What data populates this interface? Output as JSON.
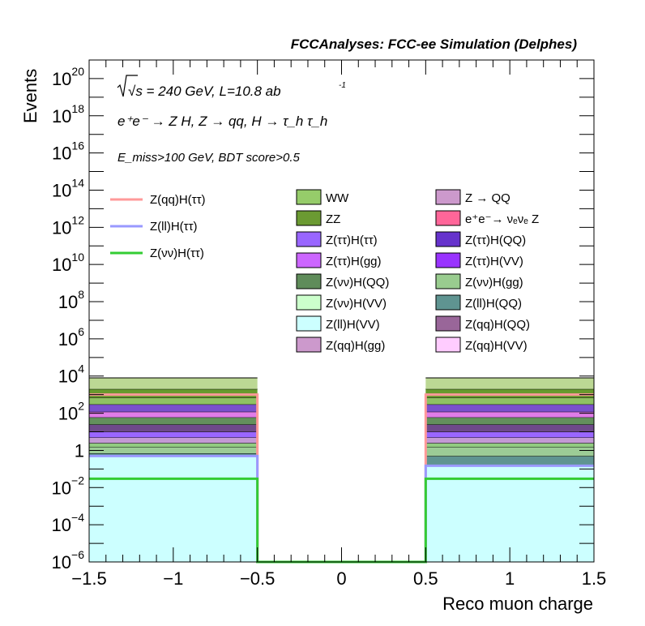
{
  "chart_data": {
    "type": "stacked histogram (log scale)",
    "title": "FCCAnalyses: FCC-ee Simulation (Delphes)",
    "xlabel": "Reco muon charge",
    "ylabel": "Events",
    "xlim": [
      -1.5,
      1.5
    ],
    "ylim": [
      1e-06,
      1e+21
    ],
    "y_scale": "log",
    "x_ticks": [
      "−1.5",
      "−1",
      "−0.5",
      "0",
      "0.5",
      "1",
      "1.5"
    ],
    "y_ticks": [
      {
        "base": "10",
        "exp": "−6",
        "value": 1e-06
      },
      {
        "base": "10",
        "exp": "−4",
        "value": 0.0001
      },
      {
        "base": "10",
        "exp": "−2",
        "value": 0.01
      },
      {
        "base": "1",
        "exp": "",
        "value": 1
      },
      {
        "base": "10",
        "exp": "2",
        "value": 100.0
      },
      {
        "base": "10",
        "exp": "4",
        "value": 10000.0
      },
      {
        "base": "10",
        "exp": "6",
        "value": 1000000.0
      },
      {
        "base": "10",
        "exp": "8",
        "value": 100000000.0
      },
      {
        "base": "10",
        "exp": "10",
        "value": 10000000000.0
      },
      {
        "base": "10",
        "exp": "12",
        "value": 1000000000000.0
      },
      {
        "base": "10",
        "exp": "14",
        "value": 100000000000000.0
      },
      {
        "base": "10",
        "exp": "16",
        "value": 1e+16
      },
      {
        "base": "10",
        "exp": "18",
        "value": 1e+18
      },
      {
        "base": "10",
        "exp": "20",
        "value": 1e+20
      }
    ],
    "bins": [
      [
        -1.5,
        -0.5
      ],
      [
        -0.5,
        0.5
      ],
      [
        0.5,
        1.5
      ]
    ],
    "annotations": {
      "energy": "√s = 240 GeV, L=10.8 ab",
      "energy_sup": "-1",
      "process": "e⁺e⁻ → Z H, Z → qq, H → τ_h τ_h",
      "cut": "E_miss>100 GeV, BDT score>0.5"
    },
    "stacked_boundaries_left_bin": [
      0.5,
      0.7,
      1.5,
      2.5,
      5,
      10,
      25,
      60,
      120,
      300,
      700,
      2000,
      8000
    ],
    "stacked_boundaries_right_bin": [
      0.15,
      0.5,
      1.5,
      2.5,
      5,
      10,
      25,
      60,
      120,
      300,
      700,
      2000,
      8000
    ],
    "stack_segment_colors": [
      "#ccffff",
      "#5f9491",
      "#9ccc96",
      "#91cc80",
      "#c39ad4",
      "#9a66ff",
      "#6e4a8a",
      "#63905c",
      "#e07ce8",
      "#7a50cc",
      "#8fc163",
      "#689a2e",
      "#bcd894"
    ],
    "stack_legend": [
      {
        "name": "WW",
        "color": "#96cc6a"
      },
      {
        "name": "Z → QQ",
        "color": "#cc99cc"
      },
      {
        "name": "ZZ",
        "color": "#6b9a32"
      },
      {
        "name": "e⁺e⁻→ νₑνₑ Z",
        "color": "#ff6699"
      },
      {
        "name": "Z(ττ)H(ττ)",
        "color": "#9966ff"
      },
      {
        "name": "Z(ττ)H(QQ)",
        "color": "#6633cc"
      },
      {
        "name": "Z(ττ)H(gg)",
        "color": "#cc66ff"
      },
      {
        "name": "Z(ττ)H(VV)",
        "color": "#9933ff"
      },
      {
        "name": "Z(νν)H(QQ)",
        "color": "#5f8c5a"
      },
      {
        "name": "Z(νν)H(gg)",
        "color": "#99cc8f"
      },
      {
        "name": "Z(νν)H(VV)",
        "color": "#ccffcc"
      },
      {
        "name": "Z(ll)H(QQ)",
        "color": "#5f9491"
      },
      {
        "name": "Z(ll)H(VV)",
        "color": "#ccffff"
      },
      {
        "name": "Z(qq)H(QQ)",
        "color": "#996699"
      },
      {
        "name": "Z(qq)H(gg)",
        "color": "#cc99cc"
      },
      {
        "name": "Z(qq)H(VV)",
        "color": "#ffccff"
      }
    ],
    "signal_series": [
      {
        "name": "Z(qq)H(ττ)",
        "color": "#ff9999",
        "values": [
          1000,
          1e-06,
          1000
        ]
      },
      {
        "name": "Z(ll)H(ττ)",
        "color": "#9999ff",
        "values": [
          0.5,
          1e-06,
          0.15
        ]
      },
      {
        "name": "Z(νν)H(ττ)",
        "color": "#33cc33",
        "values": [
          0.03,
          1e-06,
          0.03
        ]
      }
    ]
  }
}
